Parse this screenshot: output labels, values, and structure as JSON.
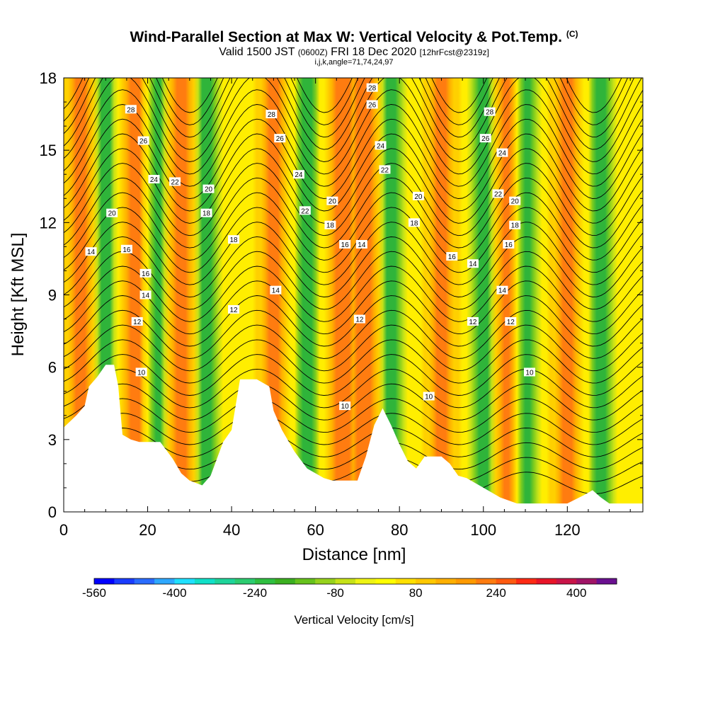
{
  "header": {
    "title": "Wind-Parallel Section at Max W: Vertical Velocity & Pot.Temp.",
    "title_mark": "(C)",
    "valid_a": "Valid 1500 JST ",
    "valid_utc": "(0600Z)",
    "valid_b": " FRI 18 Dec 2020 ",
    "forecast": "[12hrFcst@2319z]",
    "indices": "i,j,k,angle=71,74,24,97"
  },
  "chart_data": {
    "type": "contour_cross_section",
    "xlabel": "Distance [nm]",
    "ylabel": "Height [Kft MSL]",
    "xlim": [
      0,
      138
    ],
    "ylim": [
      0,
      18
    ],
    "xticks": [
      0,
      20,
      40,
      60,
      80,
      100,
      120
    ],
    "yticks": [
      0,
      3,
      6,
      9,
      12,
      15,
      18
    ],
    "fill_variable": "Vertical Velocity [cm/s]",
    "contour_variable": "Potential temperature",
    "updraft_centers_nm": [
      4,
      17,
      28,
      50,
      66,
      72,
      90,
      106,
      120
    ],
    "downdraft_centers_nm": [
      10,
      22,
      34,
      58,
      78,
      100,
      110,
      128
    ],
    "contour_labels": [
      {
        "text": "28",
        "x": 16,
        "y": 16.7
      },
      {
        "text": "26",
        "x": 19,
        "y": 15.4
      },
      {
        "text": "24",
        "x": 21.5,
        "y": 13.8
      },
      {
        "text": "22",
        "x": 26.5,
        "y": 13.7
      },
      {
        "text": "20",
        "x": 11.5,
        "y": 12.4
      },
      {
        "text": "20",
        "x": 34.5,
        "y": 13.4
      },
      {
        "text": "18",
        "x": 34,
        "y": 12.4
      },
      {
        "text": "18",
        "x": 40.5,
        "y": 11.3
      },
      {
        "text": "16",
        "x": 15,
        "y": 10.9
      },
      {
        "text": "16",
        "x": 19.5,
        "y": 9.9
      },
      {
        "text": "14",
        "x": 6.5,
        "y": 10.8
      },
      {
        "text": "14",
        "x": 19.5,
        "y": 9.0
      },
      {
        "text": "14",
        "x": 50.5,
        "y": 9.2
      },
      {
        "text": "12",
        "x": 17.5,
        "y": 7.9
      },
      {
        "text": "12",
        "x": 40.5,
        "y": 8.4
      },
      {
        "text": "10",
        "x": 18.5,
        "y": 5.8
      },
      {
        "text": "28",
        "x": 49.5,
        "y": 16.5
      },
      {
        "text": "26",
        "x": 51.5,
        "y": 15.5
      },
      {
        "text": "24",
        "x": 56,
        "y": 14.0
      },
      {
        "text": "22",
        "x": 57.5,
        "y": 12.5
      },
      {
        "text": "20",
        "x": 64,
        "y": 12.9
      },
      {
        "text": "18",
        "x": 63.5,
        "y": 11.9
      },
      {
        "text": "16",
        "x": 67,
        "y": 11.1
      },
      {
        "text": "14",
        "x": 71,
        "y": 11.1
      },
      {
        "text": "12",
        "x": 70.5,
        "y": 8.0
      },
      {
        "text": "10",
        "x": 67,
        "y": 4.4
      },
      {
        "text": "28",
        "x": 73.5,
        "y": 17.6
      },
      {
        "text": "26",
        "x": 73.5,
        "y": 16.9
      },
      {
        "text": "24",
        "x": 75.5,
        "y": 15.2
      },
      {
        "text": "22",
        "x": 76.5,
        "y": 14.2
      },
      {
        "text": "20",
        "x": 84.5,
        "y": 13.1
      },
      {
        "text": "18",
        "x": 83.5,
        "y": 12.0
      },
      {
        "text": "16",
        "x": 92.5,
        "y": 10.6
      },
      {
        "text": "10",
        "x": 87,
        "y": 4.8
      },
      {
        "text": "28",
        "x": 101.5,
        "y": 16.6
      },
      {
        "text": "26",
        "x": 100.5,
        "y": 15.5
      },
      {
        "text": "24",
        "x": 104.5,
        "y": 14.9
      },
      {
        "text": "22",
        "x": 103.5,
        "y": 13.2
      },
      {
        "text": "20",
        "x": 107.5,
        "y": 12.9
      },
      {
        "text": "18",
        "x": 107.5,
        "y": 11.9
      },
      {
        "text": "16",
        "x": 106,
        "y": 11.1
      },
      {
        "text": "14",
        "x": 97.5,
        "y": 10.3
      },
      {
        "text": "14",
        "x": 104.5,
        "y": 9.2
      },
      {
        "text": "12",
        "x": 97.5,
        "y": 7.9
      },
      {
        "text": "12",
        "x": 106.5,
        "y": 7.9
      },
      {
        "text": "10",
        "x": 111,
        "y": 5.8
      }
    ],
    "colorbar": {
      "label": "Vertical Velocity [cm/s]",
      "min": -560,
      "max": 480,
      "step": 40,
      "tick_labels": [
        "-560",
        "-400",
        "-240",
        "-80",
        "80",
        "240",
        "400"
      ],
      "tick_values": [
        -560,
        -400,
        -240,
        -80,
        80,
        240,
        400
      ],
      "colors": [
        "#0000ff",
        "#1a3cff",
        "#2a6cff",
        "#2ea8ff",
        "#20e0ff",
        "#10e0c8",
        "#1ed49a",
        "#2ccc70",
        "#2fbf40",
        "#3bb020",
        "#66c21c",
        "#96d21c",
        "#c6e218",
        "#eef414",
        "#ffff00",
        "#ffe000",
        "#ffc800",
        "#ffb000",
        "#ff9a00",
        "#ff7c10",
        "#ff5a10",
        "#ff2a14",
        "#e81428",
        "#c81448",
        "#a01466",
        "#6a1090"
      ]
    }
  }
}
